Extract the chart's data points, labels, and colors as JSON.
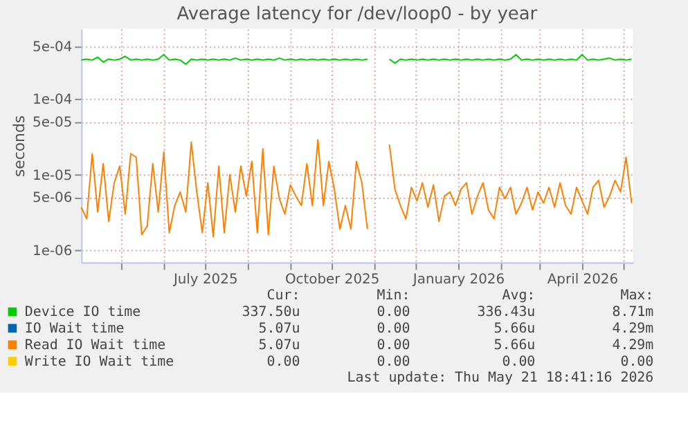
{
  "chart_data": {
    "type": "line",
    "title": "Average latency for /dev/loop0 - by year",
    "ylabel": "seconds",
    "log": true,
    "grid": true,
    "legend": "bottom",
    "xlim": [
      "2025-04-02",
      "2026-05-08"
    ],
    "ylim": [
      6.9e-07,
      0.00086
    ],
    "xticks": [
      {
        "value": "2025-05-01",
        "label": null
      },
      {
        "value": "2025-06-01",
        "label": null
      },
      {
        "value": "2025-07-01",
        "label": "July 2025"
      },
      {
        "value": "2025-08-01",
        "label": null
      },
      {
        "value": "2025-09-01",
        "label": null
      },
      {
        "value": "2025-10-01",
        "label": "October 2025"
      },
      {
        "value": "2025-11-01",
        "label": null
      },
      {
        "value": "2025-12-01",
        "label": null
      },
      {
        "value": "2026-01-01",
        "label": "January 2026"
      },
      {
        "value": "2026-02-01",
        "label": null
      },
      {
        "value": "2026-03-01",
        "label": null
      },
      {
        "value": "2026-04-01",
        "label": "April 2026"
      },
      {
        "value": "2026-05-01",
        "label": null
      }
    ],
    "yticks": [
      {
        "value": 1e-06,
        "label": "1e-06"
      },
      {
        "value": 5e-06,
        "label": "5e-06"
      },
      {
        "value": 1e-05,
        "label": "1e-05"
      },
      {
        "value": 5e-05,
        "label": "5e-05"
      },
      {
        "value": 0.0001,
        "label": "1e-04"
      },
      {
        "value": 0.0005,
        "label": "5e-04"
      }
    ],
    "x": [
      "2025-04-02",
      "2025-04-06",
      "2025-04-10",
      "2025-04-14",
      "2025-04-18",
      "2025-04-22",
      "2025-04-26",
      "2025-04-30",
      "2025-05-04",
      "2025-05-08",
      "2025-05-12",
      "2025-05-16",
      "2025-05-20",
      "2025-05-24",
      "2025-05-28",
      "2025-06-01",
      "2025-06-05",
      "2025-06-09",
      "2025-06-13",
      "2025-06-17",
      "2025-06-21",
      "2025-06-25",
      "2025-06-29",
      "2025-07-03",
      "2025-07-07",
      "2025-07-11",
      "2025-07-15",
      "2025-07-19",
      "2025-07-23",
      "2025-07-27",
      "2025-07-31",
      "2025-08-04",
      "2025-08-08",
      "2025-08-12",
      "2025-08-16",
      "2025-08-20",
      "2025-08-24",
      "2025-08-28",
      "2025-09-01",
      "2025-09-05",
      "2025-09-09",
      "2025-09-13",
      "2025-09-17",
      "2025-09-21",
      "2025-09-25",
      "2025-09-29",
      "2025-10-03",
      "2025-10-07",
      "2025-10-11",
      "2025-10-15",
      "2025-10-19",
      "2025-10-23",
      "2025-10-27",
      "2025-10-31",
      "2025-11-04",
      "2025-11-08",
      "2025-11-12",
      "2025-11-16",
      "2025-11-20",
      "2025-11-24",
      "2025-11-28",
      "2025-12-02",
      "2025-12-06",
      "2025-12-10",
      "2025-12-14",
      "2025-12-18",
      "2025-12-22",
      "2025-12-26",
      "2025-12-30",
      "2026-01-03",
      "2026-01-07",
      "2026-01-11",
      "2026-01-15",
      "2026-01-19",
      "2026-01-23",
      "2026-01-27",
      "2026-01-31",
      "2026-02-04",
      "2026-02-08",
      "2026-02-12",
      "2026-02-16",
      "2026-02-20",
      "2026-02-24",
      "2026-02-28",
      "2026-03-04",
      "2026-03-08",
      "2026-03-12",
      "2026-03-16",
      "2026-03-20",
      "2026-03-24",
      "2026-03-28",
      "2026-04-01",
      "2026-04-05",
      "2026-04-09",
      "2026-04-13",
      "2026-04-17",
      "2026-04-21",
      "2026-04-25",
      "2026-04-29",
      "2026-05-03",
      "2026-05-07"
    ],
    "series": [
      {
        "name": "Device IO time",
        "color": "#00cc00",
        "values": [
          0.00033,
          0.00034,
          0.00033,
          0.00036,
          0.00031,
          0.00034,
          0.00033,
          0.00034,
          0.00037,
          0.00033,
          0.00034,
          0.00033,
          0.00034,
          0.00033,
          0.00034,
          0.00039,
          0.00033,
          0.00034,
          0.00033,
          0.00029,
          0.00034,
          0.00033,
          0.00034,
          0.00033,
          0.00034,
          0.00033,
          0.00034,
          0.00033,
          0.00035,
          0.00033,
          0.00034,
          0.00033,
          0.00034,
          0.00033,
          0.00034,
          0.00033,
          0.00035,
          0.00033,
          0.00034,
          0.00033,
          0.00034,
          0.00033,
          0.00034,
          0.00033,
          0.00034,
          0.00033,
          0.00034,
          0.00033,
          0.00034,
          0.00033,
          0.00034,
          0.00033,
          0.00034,
          null,
          null,
          null,
          0.00034,
          0.0003,
          0.00034,
          0.00033,
          0.00034,
          0.00033,
          0.00034,
          0.00033,
          0.00034,
          0.00033,
          0.00034,
          0.00033,
          0.00034,
          0.00033,
          0.00034,
          0.00033,
          0.00034,
          0.00033,
          0.00034,
          0.00033,
          0.00034,
          0.00033,
          0.00034,
          0.00039,
          0.00033,
          0.00034,
          0.00033,
          0.00034,
          0.00033,
          0.00034,
          0.00033,
          0.00034,
          0.00033,
          0.00034,
          0.00033,
          0.00039,
          0.00033,
          0.00034,
          0.00033,
          0.00034,
          0.00035,
          0.00033,
          0.00034,
          0.00033,
          0.00034
        ]
      },
      {
        "name": "IO Wait time",
        "color": "#0066b3",
        "values": [
          null,
          null,
          null,
          null,
          null,
          null,
          null,
          null,
          null,
          null,
          null,
          null,
          null,
          null,
          null,
          null,
          null,
          null,
          null,
          null,
          null,
          null,
          null,
          null,
          null,
          null,
          null,
          null,
          null,
          null,
          null,
          null,
          null,
          null,
          null,
          null,
          null,
          null,
          null,
          null,
          null,
          null,
          null,
          null,
          null,
          null,
          null,
          null,
          null,
          null,
          null,
          null,
          null,
          null,
          null,
          null,
          null,
          null,
          null,
          null,
          null,
          null,
          null,
          null,
          null,
          null,
          null,
          null,
          null,
          null,
          null,
          null,
          null,
          null,
          null,
          null,
          null,
          null,
          null,
          null,
          null,
          null,
          null,
          null,
          null,
          null,
          null,
          null,
          null,
          null,
          null,
          null,
          null,
          null,
          null,
          null,
          null,
          null,
          null,
          null,
          null
        ]
      },
      {
        "name": "Read IO Wait time",
        "color": "#ff8000",
        "values": [
          3.7e-06,
          2.6e-06,
          1.9e-05,
          3.2e-06,
          1.4e-05,
          2.4e-06,
          7.8e-06,
          1.3e-05,
          3e-06,
          1.9e-05,
          1.7e-05,
          1.6e-06,
          2.1e-06,
          1.4e-05,
          3.2e-06,
          2e-05,
          1.7e-06,
          3.9e-06,
          5.9e-06,
          3.2e-06,
          2.7e-05,
          5.9e-06,
          1.7e-06,
          7.8e-06,
          1.5e-06,
          1.3e-05,
          1.7e-06,
          1e-05,
          3.2e-06,
          1.3e-05,
          5.2e-06,
          1.5e-05,
          1.7e-06,
          2.2e-05,
          1.6e-06,
          1.3e-05,
          4.8e-06,
          3e-06,
          7.3e-06,
          5.2e-06,
          3.9e-06,
          1.4e-05,
          3.9e-06,
          2.9e-05,
          3.9e-06,
          1.5e-05,
          6.4e-06,
          1.9e-06,
          3.9e-06,
          1.9e-06,
          1.5e-05,
          7.8e-06,
          1.9e-06,
          null,
          null,
          null,
          2.5e-05,
          6.4e-06,
          3.9e-06,
          2.6e-06,
          6.8e-06,
          4.5e-06,
          7.8e-06,
          3.7e-06,
          7.3e-06,
          2.4e-06,
          5.2e-06,
          5.9e-06,
          3.9e-06,
          6.4e-06,
          7.8e-06,
          3e-06,
          5.2e-06,
          7.8e-06,
          3.4e-06,
          2.6e-06,
          6.8e-06,
          4.8e-06,
          6.8e-06,
          3e-06,
          4.2e-06,
          6.8e-06,
          3.4e-06,
          5.9e-06,
          4.2e-06,
          6.8e-06,
          3.7e-06,
          7.8e-06,
          3.9e-06,
          3e-06,
          6.8e-06,
          4.5e-06,
          3e-06,
          6.8e-06,
          8.4e-06,
          3.7e-06,
          5.2e-06,
          8.4e-06,
          5.9e-06,
          1.7e-05,
          4.2e-06
        ]
      },
      {
        "name": "Write IO Wait time",
        "color": "#ffcc00",
        "values": [
          null,
          null,
          null,
          null,
          null,
          null,
          null,
          null,
          null,
          null,
          null,
          null,
          null,
          null,
          null,
          null,
          null,
          null,
          null,
          null,
          null,
          null,
          null,
          null,
          null,
          null,
          null,
          null,
          null,
          null,
          null,
          null,
          null,
          null,
          null,
          null,
          null,
          null,
          null,
          null,
          null,
          null,
          null,
          null,
          null,
          null,
          null,
          null,
          null,
          null,
          null,
          null,
          null,
          null,
          null,
          null,
          null,
          null,
          null,
          null,
          null,
          null,
          null,
          null,
          null,
          null,
          null,
          null,
          null,
          null,
          null,
          null,
          null,
          null,
          null,
          null,
          null,
          null,
          null,
          null,
          null,
          null,
          null,
          null,
          null,
          null,
          null,
          null,
          null,
          null,
          null,
          null,
          null,
          null,
          null,
          null,
          null,
          null,
          null,
          null,
          null
        ]
      }
    ],
    "annotations": [
      "Cur:",
      "Min:",
      "Avg:",
      "Max:",
      "337.50u",
      "0.00",
      "336.43u",
      "8.71m",
      "5.07u",
      "0.00",
      "5.66u",
      "4.29m",
      "5.07u",
      "0.00",
      "5.66u",
      "4.29m",
      "0.00",
      "0.00",
      "0.00",
      "0.00",
      "Last update: Thu May 21 18:41:16 2026"
    ]
  }
}
